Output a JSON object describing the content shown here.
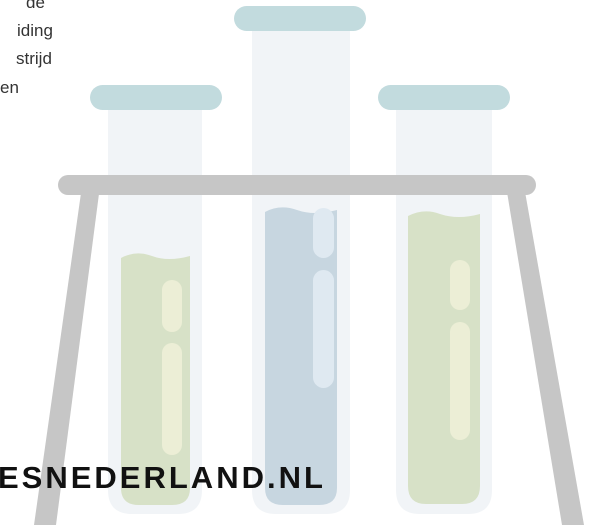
{
  "intro_text": {
    "lines": [
      "de",
      "iding",
      "strijd",
      "en"
    ]
  },
  "brand": {
    "text": "ESNEDERLAND.NL"
  },
  "colors": {
    "cap": "#c2dbde",
    "tube_glass": "#f1f4f7",
    "rack": "#c6c6c6",
    "liquid_green": "#d7e1c7",
    "liquid_blue": "#c7d6e0",
    "highlight_yellow": "#eceed6",
    "highlight_blue": "#dfe9f1",
    "brand_text": "#111111"
  }
}
